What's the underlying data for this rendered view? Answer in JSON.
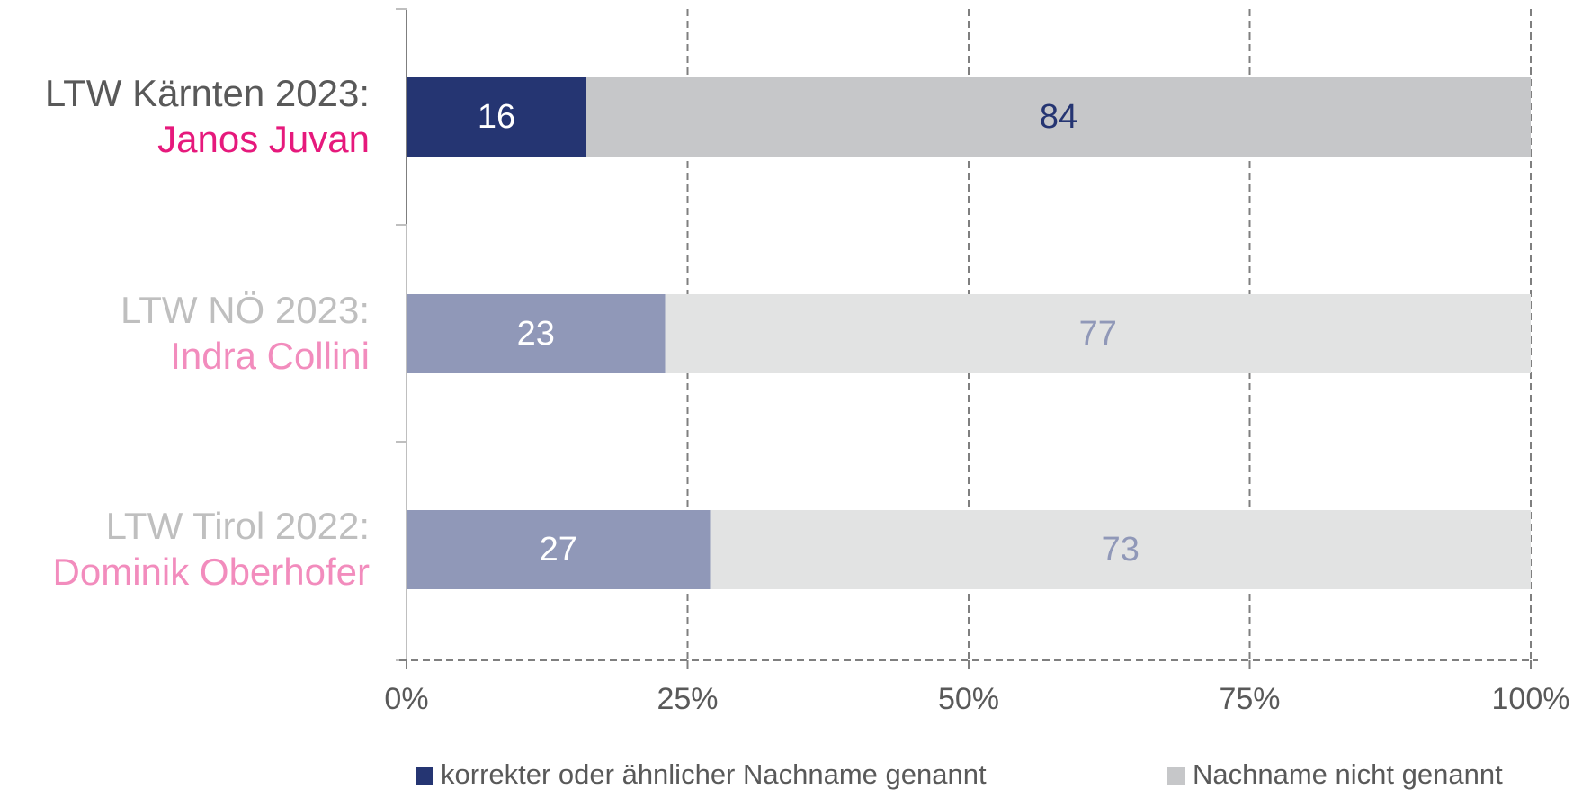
{
  "chart_data": {
    "type": "stacked_bar_horizontal",
    "categories": [
      "LTW Kärnten 2023:",
      "LTW NÖ 2023:",
      "LTW Tirol 2022:"
    ],
    "candidates": [
      "Janos Juvan",
      "Indra Collini",
      "Dominik Oberhofer"
    ],
    "category_colors": [
      "#595959",
      "#bfbfbf",
      "#bfbfbf"
    ],
    "candidate_colors": [
      "#e6197c",
      "#f28cbd",
      "#f28cbd"
    ],
    "series": [
      {
        "name": "korrekter oder ähnlicher Nachname genannt",
        "color": "#253572",
        "colors": [
          "#253572",
          "#9098b8",
          "#9098b8"
        ],
        "label_colors": [
          "#ffffff",
          "#ffffff",
          "#ffffff"
        ],
        "values": [
          16,
          23,
          27
        ]
      },
      {
        "name": "Nachname nicht genannt",
        "color": "#c6c7c9",
        "colors": [
          "#c6c7c9",
          "#e2e3e3",
          "#e2e3e3"
        ],
        "label_colors": [
          "#253572",
          "#9098b8",
          "#9098b8"
        ],
        "values": [
          84,
          77,
          73
        ]
      }
    ],
    "xlim": [
      0,
      100
    ],
    "xticks": [
      {
        "value": 0,
        "label": "0%"
      },
      {
        "value": 25,
        "label": "25%"
      },
      {
        "value": 50,
        "label": "50%"
      },
      {
        "value": 75,
        "label": "75%"
      },
      {
        "value": 100,
        "label": "100%"
      }
    ],
    "grid": true,
    "legend": "bottom"
  }
}
